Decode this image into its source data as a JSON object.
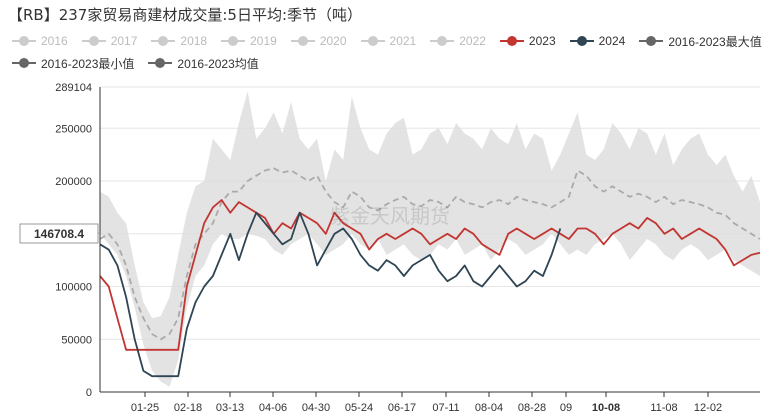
{
  "chart_data": {
    "type": "area",
    "title": "【RB】237家贸易商建材成交量:5日平均:季节（吨）",
    "ylim": [
      0,
      289104
    ],
    "ytick_labels": [
      "0",
      "50000",
      "100000",
      "150000",
      "200000",
      "250000",
      "289104"
    ],
    "xtick_labels": [
      "01-25",
      "02-18",
      "03-13",
      "04-06",
      "04-30",
      "05-24",
      "06-17",
      "07-11",
      "08-04",
      "08-28",
      "09",
      "10-08",
      "11-08",
      "12-02"
    ],
    "highlight_x_label": "10-08",
    "pointer_value": "146708.4",
    "watermark": "紫金天风期货",
    "legend": [
      {
        "label": "2016",
        "active": false,
        "color": "#cccccc"
      },
      {
        "label": "2017",
        "active": false,
        "color": "#cccccc"
      },
      {
        "label": "2018",
        "active": false,
        "color": "#cccccc"
      },
      {
        "label": "2019",
        "active": false,
        "color": "#cccccc"
      },
      {
        "label": "2020",
        "active": false,
        "color": "#cccccc"
      },
      {
        "label": "2021",
        "active": false,
        "color": "#cccccc"
      },
      {
        "label": "2022",
        "active": false,
        "color": "#cccccc"
      },
      {
        "label": "2023",
        "active": true,
        "color": "#c23531"
      },
      {
        "label": "2024",
        "active": true,
        "color": "#2f4554"
      },
      {
        "label": "2016-2023最大值",
        "active": true,
        "color": "#666666"
      },
      {
        "label": "2016-2023最小值",
        "active": true,
        "color": "#666666"
      },
      {
        "label": "2016-2023均值",
        "active": true,
        "color": "#666666"
      }
    ],
    "series": [
      {
        "name": "2016-2023最大值",
        "color": "#e3e3e3",
        "values": [
          190000,
          185000,
          170000,
          160000,
          120000,
          85000,
          70000,
          72000,
          90000,
          130000,
          170000,
          195000,
          200000,
          240000,
          230000,
          220000,
          255000,
          285000,
          240000,
          250000,
          265000,
          245000,
          275000,
          240000,
          230000,
          240000,
          200000,
          230000,
          220000,
          280000,
          250000,
          230000,
          225000,
          245000,
          255000,
          260000,
          225000,
          230000,
          245000,
          250000,
          235000,
          255000,
          245000,
          240000,
          230000,
          250000,
          240000,
          235000,
          255000,
          230000,
          245000,
          240000,
          210000,
          225000,
          245000,
          265000,
          225000,
          220000,
          230000,
          255000,
          245000,
          230000,
          250000,
          245000,
          225000,
          245000,
          215000,
          230000,
          240000,
          245000,
          225000,
          215000,
          225000,
          205000,
          190000,
          205000,
          180000
        ]
      },
      {
        "name": "2016-2023最小值",
        "color": "#e3e3e3",
        "values": [
          150000,
          140000,
          130000,
          110000,
          80000,
          45000,
          20000,
          10000,
          5000,
          30000,
          80000,
          110000,
          120000,
          140000,
          150000,
          145000,
          145000,
          150000,
          148000,
          145000,
          135000,
          130000,
          140000,
          145000,
          150000,
          140000,
          130000,
          135000,
          140000,
          150000,
          140000,
          135000,
          145000,
          130000,
          135000,
          140000,
          130000,
          125000,
          130000,
          140000,
          135000,
          145000,
          130000,
          135000,
          140000,
          125000,
          135000,
          145000,
          140000,
          130000,
          135000,
          140000,
          150000,
          140000,
          130000,
          135000,
          130000,
          140000,
          145000,
          150000,
          140000,
          125000,
          135000,
          145000,
          140000,
          130000,
          125000,
          135000,
          140000,
          135000,
          125000,
          130000,
          135000,
          125000,
          120000,
          115000,
          110000
        ]
      },
      {
        "name": "2016-2023均值",
        "color": "#aaaaaa",
        "values": [
          145000,
          150000,
          140000,
          120000,
          90000,
          70000,
          55000,
          50000,
          55000,
          70000,
          110000,
          140000,
          150000,
          160000,
          180000,
          190000,
          190000,
          200000,
          205000,
          210000,
          212000,
          208000,
          210000,
          205000,
          200000,
          205000,
          190000,
          180000,
          175000,
          190000,
          185000,
          175000,
          172000,
          178000,
          182000,
          185000,
          178000,
          176000,
          182000,
          180000,
          175000,
          185000,
          180000,
          178000,
          175000,
          180000,
          182000,
          178000,
          185000,
          182000,
          180000,
          178000,
          175000,
          180000,
          185000,
          210000,
          205000,
          195000,
          190000,
          195000,
          190000,
          185000,
          188000,
          185000,
          180000,
          185000,
          178000,
          182000,
          180000,
          178000,
          175000,
          170000,
          168000,
          160000,
          155000,
          150000,
          145000
        ]
      },
      {
        "name": "2023",
        "color": "#c23531",
        "values": [
          110000,
          100000,
          70000,
          40000,
          40000,
          40000,
          40000,
          40000,
          40000,
          40000,
          100000,
          130000,
          160000,
          175000,
          182000,
          170000,
          180000,
          175000,
          170000,
          165000,
          150000,
          160000,
          155000,
          170000,
          165000,
          160000,
          150000,
          170000,
          160000,
          155000,
          150000,
          135000,
          145000,
          150000,
          145000,
          150000,
          155000,
          150000,
          140000,
          145000,
          150000,
          145000,
          155000,
          150000,
          140000,
          135000,
          130000,
          150000,
          155000,
          150000,
          145000,
          150000,
          155000,
          150000,
          145000,
          155000,
          155000,
          150000,
          140000,
          150000,
          155000,
          160000,
          155000,
          165000,
          160000,
          150000,
          155000,
          145000,
          150000,
          155000,
          150000,
          145000,
          135000,
          120000,
          125000,
          130000,
          132000
        ]
      },
      {
        "name": "2024",
        "color": "#2f4554",
        "values": [
          140000,
          135000,
          120000,
          90000,
          50000,
          20000,
          15000,
          15000,
          15000,
          15000,
          60000,
          85000,
          100000,
          110000,
          130000,
          150000,
          125000,
          150000,
          170000,
          160000,
          150000,
          140000,
          145000,
          170000,
          150000,
          120000,
          135000,
          150000,
          155000,
          145000,
          130000,
          120000,
          115000,
          125000,
          120000,
          110000,
          120000,
          125000,
          130000,
          115000,
          105000,
          110000,
          120000,
          105000,
          100000,
          110000,
          120000,
          110000,
          100000,
          105000,
          115000,
          110000,
          130000,
          155000
        ]
      }
    ]
  }
}
